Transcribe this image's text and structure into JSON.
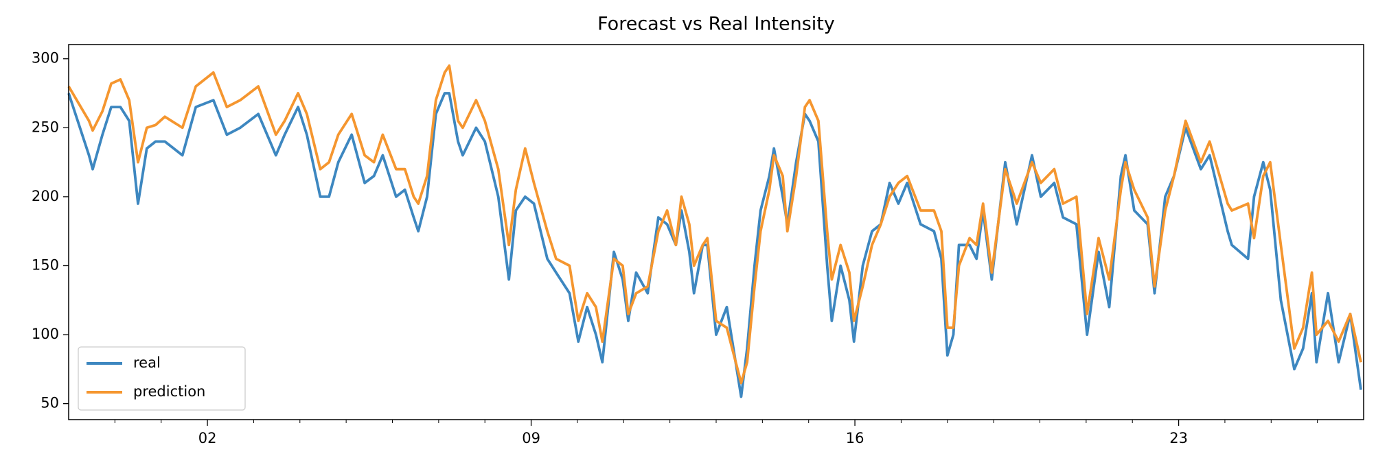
{
  "chart_data": {
    "type": "line",
    "title": "Forecast vs Real Intensity",
    "x": [
      -1.0,
      -0.56,
      -0.48,
      -0.27,
      -0.08,
      0.12,
      0.31,
      0.5,
      0.69,
      0.88,
      1.08,
      1.46,
      1.75,
      2.13,
      2.42,
      2.71,
      3.1,
      3.48,
      3.67,
      3.96,
      4.15,
      4.44,
      4.63,
      4.83,
      5.12,
      5.4,
      5.6,
      5.79,
      6.08,
      6.27,
      6.46,
      6.56,
      6.75,
      6.94,
      7.13,
      7.23,
      7.42,
      7.52,
      7.81,
      8.0,
      8.29,
      8.52,
      8.67,
      8.87,
      9.06,
      9.35,
      9.54,
      9.83,
      10.02,
      10.21,
      10.4,
      10.54,
      10.79,
      10.98,
      11.1,
      11.27,
      11.52,
      11.75,
      11.94,
      12.13,
      12.25,
      12.42,
      12.52,
      12.71,
      12.81,
      13.0,
      13.23,
      13.54,
      13.67,
      13.83,
      13.96,
      14.15,
      14.25,
      14.44,
      14.54,
      14.73,
      14.92,
      15.02,
      15.21,
      15.4,
      15.5,
      15.69,
      15.88,
      15.98,
      16.17,
      16.37,
      16.56,
      16.75,
      16.94,
      17.13,
      17.42,
      17.71,
      17.87,
      18.0,
      18.13,
      18.25,
      18.48,
      18.63,
      18.77,
      18.96,
      19.25,
      19.5,
      19.83,
      20.02,
      20.31,
      20.5,
      20.79,
      21.02,
      21.27,
      21.5,
      21.75,
      21.85,
      22.04,
      22.33,
      22.48,
      22.71,
      22.9,
      23.15,
      23.48,
      23.67,
      24.06,
      24.15,
      24.5,
      24.63,
      24.83,
      24.98,
      25.21,
      25.5,
      25.69,
      25.88,
      25.98,
      26.23,
      26.46,
      26.71,
      26.94
    ],
    "series": [
      {
        "name": "real",
        "color": "#3d87c0",
        "values": [
          275,
          230,
          220,
          245,
          265,
          265,
          255,
          195,
          235,
          240,
          240,
          230,
          265,
          270,
          245,
          250,
          260,
          230,
          245,
          265,
          245,
          200,
          200,
          225,
          245,
          210,
          215,
          230,
          200,
          205,
          185,
          175,
          200,
          260,
          275,
          275,
          240,
          230,
          250,
          240,
          200,
          140,
          190,
          200,
          195,
          155,
          145,
          130,
          95,
          120,
          100,
          80,
          160,
          140,
          110,
          145,
          130,
          185,
          180,
          165,
          190,
          160,
          130,
          165,
          165,
          100,
          120,
          55,
          90,
          150,
          190,
          215,
          235,
          200,
          180,
          225,
          260,
          255,
          240,
          150,
          110,
          150,
          125,
          95,
          150,
          175,
          180,
          210,
          195,
          210,
          180,
          175,
          155,
          85,
          100,
          165,
          165,
          155,
          190,
          140,
          225,
          180,
          230,
          200,
          210,
          185,
          180,
          100,
          160,
          120,
          215,
          230,
          190,
          180,
          130,
          200,
          215,
          250,
          220,
          230,
          175,
          165,
          155,
          200,
          225,
          205,
          125,
          75,
          90,
          130,
          80,
          130,
          80,
          115,
          60
        ]
      },
      {
        "name": "prediction",
        "color": "#f5962f",
        "values": [
          280,
          255,
          248,
          262,
          282,
          285,
          270,
          225,
          250,
          252,
          258,
          250,
          280,
          290,
          265,
          270,
          280,
          245,
          255,
          275,
          260,
          220,
          225,
          245,
          260,
          230,
          225,
          245,
          220,
          220,
          200,
          195,
          215,
          270,
          290,
          295,
          255,
          250,
          270,
          255,
          220,
          165,
          205,
          235,
          210,
          175,
          155,
          150,
          110,
          130,
          120,
          95,
          155,
          150,
          115,
          130,
          135,
          175,
          190,
          165,
          200,
          180,
          150,
          165,
          170,
          110,
          105,
          65,
          80,
          135,
          175,
          205,
          230,
          215,
          175,
          215,
          265,
          270,
          255,
          175,
          140,
          165,
          145,
          110,
          135,
          165,
          180,
          200,
          210,
          215,
          190,
          190,
          175,
          105,
          105,
          150,
          170,
          165,
          195,
          145,
          220,
          195,
          225,
          210,
          220,
          195,
          200,
          115,
          170,
          140,
          205,
          225,
          205,
          185,
          135,
          190,
          215,
          255,
          225,
          240,
          195,
          190,
          195,
          170,
          215,
          225,
          165,
          90,
          105,
          145,
          100,
          110,
          95,
          115,
          80
        ]
      }
    ],
    "xlim": [
      -1,
      27
    ],
    "xticks": [
      {
        "value": 2,
        "label": "02"
      },
      {
        "value": 9,
        "label": "09"
      },
      {
        "value": 16,
        "label": "16"
      },
      {
        "value": 23,
        "label": "23"
      }
    ],
    "xminorticks": [
      0,
      1,
      3,
      4,
      5,
      6,
      7,
      8,
      10,
      11,
      12,
      13,
      14,
      15,
      17,
      18,
      19,
      20,
      21,
      22,
      24,
      25,
      26
    ],
    "ylim": [
      38.4,
      310.3
    ],
    "yticks": [
      50,
      100,
      150,
      200,
      250,
      300
    ],
    "legend": "lower left"
  }
}
